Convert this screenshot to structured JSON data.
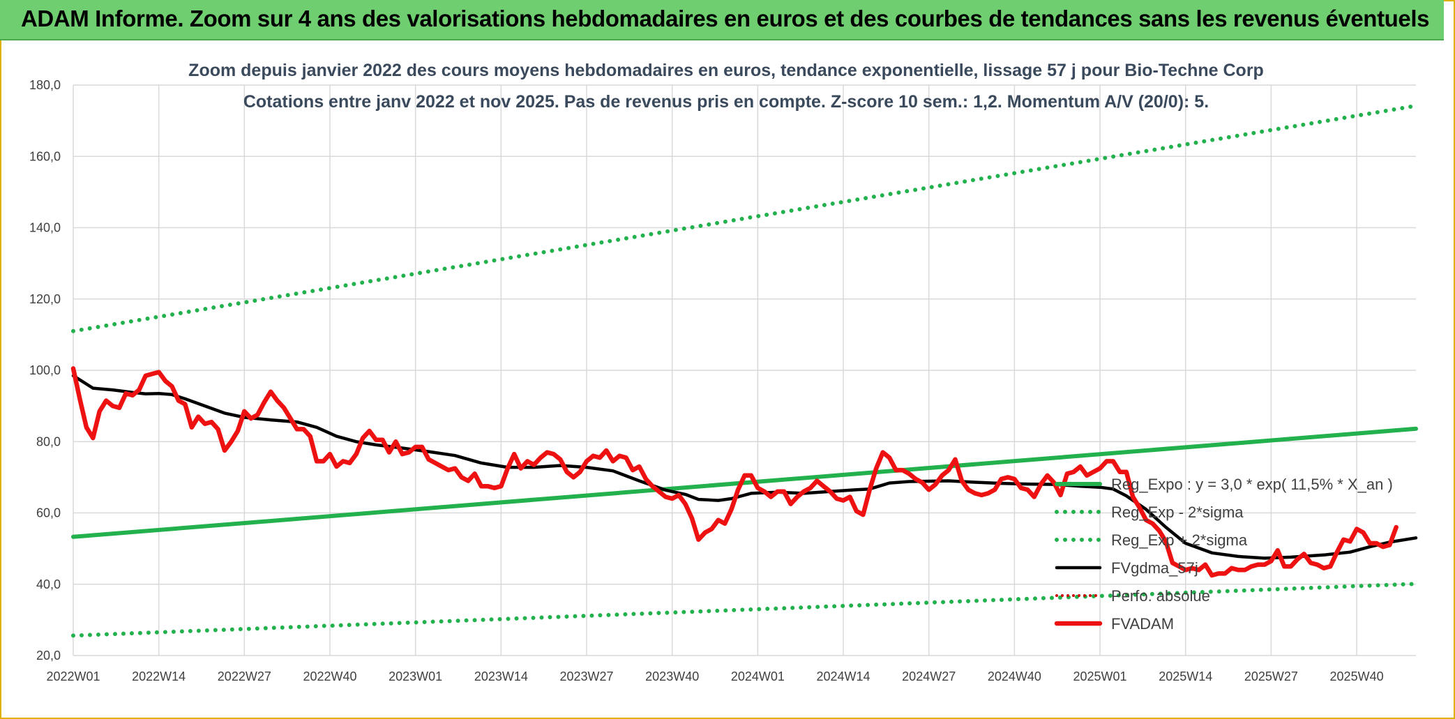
{
  "banner": {
    "title": "ADAM Informe. Zoom sur 4 ans des valorisations hebdomadaires en euros et des courbes de tendances sans les revenus éventuels"
  },
  "colors": {
    "banner_bg": "#6fce6f",
    "trend": "#22b14c",
    "sigma": "#22b14c",
    "fvgdma": "#000000",
    "fvadam": "#ee1111",
    "perfo": "#cc0000",
    "grid": "#d9d9d9"
  },
  "chart_data": {
    "type": "line",
    "title_line1": "Zoom depuis janvier 2022 des cours moyens hebdomadaires en euros, tendance exponentielle, lissage 57 j pour Bio-Techne Corp",
    "title_line2": "Cotations entre janv 2022 et nov 2025. Pas de revenus pris en compte. Z-score 10 sem.: 1,2. Momentum A/V (20/0): 5.",
    "ylim": [
      20,
      180
    ],
    "yticks": [
      "20,0",
      "40,0",
      "60,0",
      "80,0",
      "100,0",
      "120,0",
      "140,0",
      "160,0",
      "180,0"
    ],
    "ytick_values": [
      20,
      40,
      60,
      80,
      100,
      120,
      140,
      160,
      180
    ],
    "x_weeks": 204,
    "xticks": [
      {
        "label": "2022W01",
        "week": 0
      },
      {
        "label": "2022W14",
        "week": 13
      },
      {
        "label": "2022W27",
        "week": 26
      },
      {
        "label": "2022W40",
        "week": 39
      },
      {
        "label": "2023W01",
        "week": 52
      },
      {
        "label": "2023W14",
        "week": 65
      },
      {
        "label": "2023W27",
        "week": 78
      },
      {
        "label": "2023W40",
        "week": 91
      },
      {
        "label": "2024W01",
        "week": 104
      },
      {
        "label": "2024W14",
        "week": 117
      },
      {
        "label": "2024W27",
        "week": 130
      },
      {
        "label": "2024W40",
        "week": 143
      },
      {
        "label": "2025W01",
        "week": 156
      },
      {
        "label": "2025W14",
        "week": 169
      },
      {
        "label": "2025W27",
        "week": 182
      },
      {
        "label": "2025W40",
        "week": 195
      }
    ],
    "legend": [
      {
        "label": "Reg_Expo : y = 3,0 * exp( 11,5% *  X_an )",
        "style": "solid-green"
      },
      {
        "label": "Reg_Exp - 2*sigma",
        "style": "dotted-green"
      },
      {
        "label": "Reg_Exp + 2*sigma",
        "style": "dotted-green"
      },
      {
        "label": "FVgdma_57j",
        "style": "solid-black"
      },
      {
        "label": "Perfo. absolue",
        "style": "dotted-red"
      },
      {
        "label": "FVADAM",
        "style": "solid-red"
      }
    ],
    "series": [
      {
        "name": "Reg_Expo : y = 3,0 * exp( 11,5% *  X_an )",
        "kind": "solid-green",
        "points": [
          [
            0,
            53.3
          ],
          [
            204,
            83.6
          ]
        ]
      },
      {
        "name": "Reg_Exp - 2*sigma",
        "kind": "dotted-green",
        "points": [
          [
            0,
            25.6
          ],
          [
            204,
            40.1
          ]
        ]
      },
      {
        "name": "Reg_Exp + 2*sigma",
        "kind": "dotted-green",
        "points": [
          [
            0,
            111.0
          ],
          [
            204,
            174.2
          ]
        ]
      },
      {
        "name": "FVgdma_57j",
        "kind": "solid-black",
        "points": [
          [
            0,
            98.5
          ],
          [
            3,
            95.0
          ],
          [
            6,
            94.5
          ],
          [
            9,
            93.8
          ],
          [
            11,
            93.4
          ],
          [
            13,
            93.5
          ],
          [
            15,
            93.2
          ],
          [
            17,
            92.0
          ],
          [
            20,
            90.0
          ],
          [
            23,
            88.0
          ],
          [
            26,
            86.8
          ],
          [
            30,
            86.1
          ],
          [
            34,
            85.5
          ],
          [
            37,
            84.0
          ],
          [
            40,
            81.5
          ],
          [
            43,
            80.0
          ],
          [
            46,
            79.1
          ],
          [
            50,
            78.2
          ],
          [
            54,
            77.2
          ],
          [
            58,
            76.1
          ],
          [
            62,
            74.0
          ],
          [
            66,
            72.8
          ],
          [
            70,
            72.8
          ],
          [
            74,
            73.3
          ],
          [
            78,
            72.8
          ],
          [
            82,
            71.8
          ],
          [
            86,
            69.0
          ],
          [
            90,
            66.4
          ],
          [
            93,
            65.2
          ],
          [
            95,
            63.8
          ],
          [
            98,
            63.5
          ],
          [
            100,
            64.0
          ],
          [
            103,
            65.5
          ],
          [
            107,
            65.8
          ],
          [
            111,
            65.5
          ],
          [
            115,
            66.0
          ],
          [
            119,
            66.5
          ],
          [
            121,
            66.7
          ],
          [
            124,
            68.4
          ],
          [
            127,
            68.8
          ],
          [
            133,
            69.0
          ],
          [
            137,
            68.6
          ],
          [
            141,
            68.3
          ],
          [
            145,
            68.1
          ],
          [
            149,
            68.0
          ],
          [
            153,
            67.5
          ],
          [
            156,
            67.2
          ],
          [
            158,
            66.7
          ],
          [
            160,
            64.8
          ],
          [
            163,
            61.0
          ],
          [
            166,
            56.0
          ],
          [
            169,
            51.5
          ],
          [
            173,
            48.8
          ],
          [
            177,
            47.8
          ],
          [
            181,
            47.3
          ],
          [
            185,
            47.6
          ],
          [
            190,
            48.2
          ],
          [
            194,
            49.0
          ],
          [
            197,
            50.5
          ],
          [
            200,
            51.8
          ],
          [
            204,
            53.0
          ]
        ]
      },
      {
        "name": "FVADAM",
        "kind": "solid-red",
        "points": [
          [
            0,
            100.5
          ],
          [
            1,
            92.0
          ],
          [
            2,
            84.0
          ],
          [
            3,
            81.0
          ],
          [
            4,
            88.5
          ],
          [
            5,
            91.5
          ],
          [
            6,
            90.0
          ],
          [
            7,
            89.5
          ],
          [
            8,
            93.5
          ],
          [
            9,
            93.0
          ],
          [
            10,
            94.5
          ],
          [
            11,
            98.5
          ],
          [
            12,
            99.0
          ],
          [
            13,
            99.5
          ],
          [
            14,
            97.0
          ],
          [
            15,
            95.5
          ],
          [
            16,
            91.5
          ],
          [
            17,
            90.5
          ],
          [
            18,
            84.0
          ],
          [
            19,
            87.0
          ],
          [
            20,
            85.0
          ],
          [
            21,
            85.5
          ],
          [
            22,
            83.5
          ],
          [
            23,
            77.5
          ],
          [
            24,
            80.0
          ],
          [
            25,
            83.0
          ],
          [
            26,
            88.5
          ],
          [
            27,
            86.5
          ],
          [
            28,
            87.5
          ],
          [
            29,
            91.0
          ],
          [
            30,
            94.0
          ],
          [
            31,
            91.5
          ],
          [
            32,
            89.5
          ],
          [
            33,
            86.5
          ],
          [
            34,
            83.5
          ],
          [
            35,
            83.5
          ],
          [
            36,
            81.5
          ],
          [
            37,
            74.5
          ],
          [
            38,
            74.5
          ],
          [
            39,
            76.5
          ],
          [
            40,
            73.0
          ],
          [
            41,
            74.5
          ],
          [
            42,
            74.0
          ],
          [
            43,
            76.5
          ],
          [
            44,
            81.0
          ],
          [
            45,
            83.0
          ],
          [
            46,
            80.5
          ],
          [
            47,
            80.5
          ],
          [
            48,
            77.0
          ],
          [
            49,
            80.0
          ],
          [
            50,
            76.5
          ],
          [
            51,
            77.0
          ],
          [
            52,
            78.5
          ],
          [
            53,
            78.5
          ],
          [
            54,
            75.0
          ],
          [
            55,
            74.0
          ],
          [
            56,
            73.0
          ],
          [
            57,
            72.0
          ],
          [
            58,
            72.5
          ],
          [
            59,
            70.0
          ],
          [
            60,
            69.0
          ],
          [
            61,
            71.0
          ],
          [
            62,
            67.5
          ],
          [
            63,
            67.5
          ],
          [
            64,
            67.0
          ],
          [
            65,
            67.5
          ],
          [
            66,
            72.5
          ],
          [
            67,
            76.5
          ],
          [
            68,
            72.5
          ],
          [
            69,
            74.5
          ],
          [
            70,
            73.5
          ],
          [
            71,
            75.5
          ],
          [
            72,
            77.0
          ],
          [
            73,
            76.5
          ],
          [
            74,
            75.0
          ],
          [
            75,
            71.5
          ],
          [
            76,
            70.0
          ],
          [
            77,
            71.5
          ],
          [
            78,
            74.5
          ],
          [
            79,
            76.0
          ],
          [
            80,
            75.5
          ],
          [
            81,
            77.5
          ],
          [
            82,
            74.5
          ],
          [
            83,
            76.0
          ],
          [
            84,
            75.5
          ],
          [
            85,
            72.0
          ],
          [
            86,
            73.0
          ],
          [
            87,
            69.5
          ],
          [
            88,
            67.5
          ],
          [
            89,
            66.0
          ],
          [
            90,
            64.5
          ],
          [
            91,
            64.0
          ],
          [
            92,
            65.0
          ],
          [
            93,
            62.5
          ],
          [
            94,
            58.5
          ],
          [
            95,
            52.5
          ],
          [
            96,
            54.5
          ],
          [
            97,
            55.5
          ],
          [
            98,
            58.0
          ],
          [
            99,
            57.0
          ],
          [
            100,
            61.0
          ],
          [
            101,
            66.5
          ],
          [
            102,
            70.5
          ],
          [
            103,
            70.5
          ],
          [
            104,
            67.0
          ],
          [
            105,
            66.0
          ],
          [
            106,
            64.5
          ],
          [
            107,
            66.0
          ],
          [
            108,
            66.0
          ],
          [
            109,
            62.5
          ],
          [
            110,
            64.5
          ],
          [
            111,
            66.0
          ],
          [
            112,
            67.0
          ],
          [
            113,
            69.0
          ],
          [
            114,
            67.5
          ],
          [
            115,
            66.0
          ],
          [
            116,
            64.0
          ],
          [
            117,
            63.5
          ],
          [
            118,
            64.5
          ],
          [
            119,
            60.5
          ],
          [
            120,
            59.5
          ],
          [
            121,
            66.5
          ],
          [
            122,
            72.5
          ],
          [
            123,
            77.0
          ],
          [
            124,
            75.5
          ],
          [
            125,
            72.0
          ],
          [
            126,
            72.0
          ],
          [
            127,
            71.0
          ],
          [
            128,
            69.5
          ],
          [
            129,
            68.5
          ],
          [
            130,
            66.5
          ],
          [
            131,
            68.0
          ],
          [
            132,
            70.5
          ],
          [
            133,
            72.0
          ],
          [
            134,
            75.0
          ],
          [
            135,
            69.0
          ],
          [
            136,
            66.5
          ],
          [
            137,
            65.5
          ],
          [
            138,
            65.0
          ],
          [
            139,
            65.5
          ],
          [
            140,
            66.5
          ],
          [
            141,
            69.5
          ],
          [
            142,
            70.0
          ],
          [
            143,
            69.5
          ],
          [
            144,
            67.0
          ],
          [
            145,
            66.5
          ],
          [
            146,
            64.5
          ],
          [
            147,
            68.0
          ],
          [
            148,
            70.5
          ],
          [
            149,
            68.5
          ],
          [
            150,
            65.0
          ],
          [
            151,
            71.0
          ],
          [
            152,
            71.5
          ],
          [
            153,
            73.0
          ],
          [
            154,
            70.5
          ],
          [
            155,
            71.5
          ],
          [
            156,
            72.5
          ],
          [
            157,
            74.5
          ],
          [
            158,
            74.5
          ],
          [
            159,
            71.5
          ],
          [
            160,
            71.5
          ],
          [
            161,
            64.5
          ],
          [
            162,
            61.5
          ],
          [
            163,
            58.0
          ],
          [
            164,
            57.0
          ],
          [
            165,
            55.0
          ],
          [
            166,
            52.0
          ],
          [
            167,
            46.0
          ],
          [
            168,
            45.0
          ],
          [
            169,
            44.0
          ],
          [
            170,
            44.5
          ],
          [
            171,
            44.0
          ],
          [
            172,
            45.5
          ],
          [
            173,
            42.5
          ],
          [
            174,
            43.0
          ],
          [
            175,
            43.0
          ],
          [
            176,
            44.5
          ],
          [
            177,
            44.0
          ],
          [
            178,
            44.0
          ],
          [
            179,
            45.0
          ],
          [
            180,
            45.5
          ],
          [
            181,
            45.5
          ],
          [
            182,
            46.5
          ],
          [
            183,
            49.5
          ],
          [
            184,
            45.0
          ],
          [
            185,
            45.0
          ],
          [
            186,
            47.0
          ],
          [
            187,
            48.5
          ],
          [
            188,
            46.0
          ],
          [
            189,
            45.5
          ],
          [
            190,
            44.5
          ],
          [
            191,
            45.0
          ],
          [
            192,
            49.0
          ],
          [
            193,
            52.5
          ],
          [
            194,
            52.0
          ],
          [
            195,
            55.5
          ],
          [
            196,
            54.5
          ],
          [
            197,
            51.5
          ],
          [
            198,
            51.5
          ],
          [
            199,
            50.5
          ],
          [
            200,
            51.0
          ],
          [
            201,
            56.0
          ]
        ]
      }
    ]
  }
}
